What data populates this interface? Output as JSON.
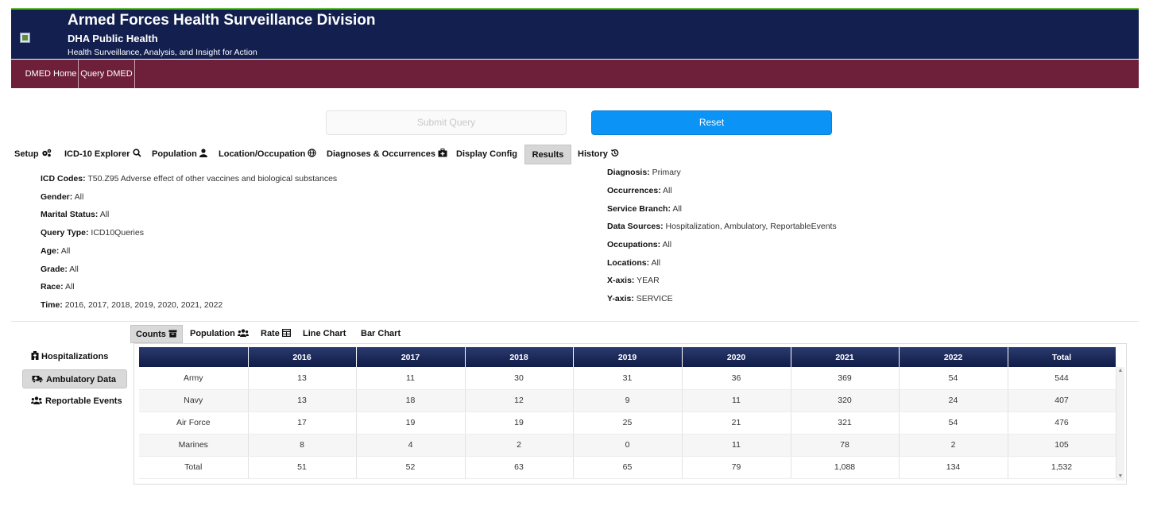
{
  "header": {
    "title": "Armed Forces Health Surveillance Division",
    "subtitle": "DHA Public Health",
    "tagline": "Health Surveillance, Analysis, and Insight for Action"
  },
  "nav": {
    "items": [
      "DMED Home",
      "Query DMED"
    ]
  },
  "actions": {
    "submit_label": "Submit Query",
    "reset_label": "Reset"
  },
  "tabs": [
    {
      "label": "Setup",
      "icon": "gears-icon"
    },
    {
      "label": "ICD-10 Explorer",
      "icon": "search-icon"
    },
    {
      "label": "Population",
      "icon": "user-icon"
    },
    {
      "label": "Location/Occupation",
      "icon": "globe-icon"
    },
    {
      "label": "Diagnoses & Occurrences",
      "icon": "medkit-icon"
    },
    {
      "label": "Display Config",
      "icon": ""
    },
    {
      "label": "Results",
      "icon": "",
      "active": true
    },
    {
      "label": "History",
      "icon": "history-icon"
    }
  ],
  "summary": {
    "left": [
      {
        "label": "ICD Codes:",
        "value": "T50.Z95 Adverse effect of other vaccines and biological substances"
      },
      {
        "label": "Gender:",
        "value": "All"
      },
      {
        "label": "Marital Status:",
        "value": "All"
      },
      {
        "label": "Query Type:",
        "value": "ICD10Queries"
      },
      {
        "label": "Age:",
        "value": "All"
      },
      {
        "label": "Grade:",
        "value": "All"
      },
      {
        "label": "Race:",
        "value": "All"
      },
      {
        "label": "Time:",
        "value": "2016, 2017, 2018, 2019, 2020, 2021, 2022"
      }
    ],
    "right": [
      {
        "label": "Diagnosis:",
        "value": "Primary"
      },
      {
        "label": "Occurrences:",
        "value": "All"
      },
      {
        "label": "Service Branch:",
        "value": "All"
      },
      {
        "label": "Data Sources:",
        "value": "Hospitalization, Ambulatory, ReportableEvents"
      },
      {
        "label": "Occupations:",
        "value": "All"
      },
      {
        "label": "Locations:",
        "value": "All"
      },
      {
        "label": "X-axis:",
        "value": "YEAR"
      },
      {
        "label": "Y-axis:",
        "value": "SERVICE"
      }
    ]
  },
  "result_tabs": [
    {
      "label": "Counts",
      "icon": "archive-icon",
      "active": true
    },
    {
      "label": "Population",
      "icon": "users-icon"
    },
    {
      "label": "Rate",
      "icon": "table-icon"
    },
    {
      "label": "Line Chart",
      "icon": ""
    },
    {
      "label": "Bar Chart",
      "icon": ""
    }
  ],
  "sources": [
    {
      "label": "Hospitalizations",
      "icon": "hospital-icon"
    },
    {
      "label": "Ambulatory Data",
      "icon": "ambulance-icon",
      "active": true
    },
    {
      "label": "Reportable Events",
      "icon": "users-icon"
    }
  ],
  "table": {
    "columns": [
      "",
      "2016",
      "2017",
      "2018",
      "2019",
      "2020",
      "2021",
      "2022",
      "Total"
    ],
    "rows": [
      [
        "Army",
        "13",
        "11",
        "30",
        "31",
        "36",
        "369",
        "54",
        "544"
      ],
      [
        "Navy",
        "13",
        "18",
        "12",
        "9",
        "11",
        "320",
        "24",
        "407"
      ],
      [
        "Air Force",
        "17",
        "19",
        "19",
        "25",
        "21",
        "321",
        "54",
        "476"
      ],
      [
        "Marines",
        "8",
        "4",
        "2",
        "0",
        "11",
        "78",
        "2",
        "105"
      ],
      [
        "Total",
        "51",
        "52",
        "63",
        "65",
        "79",
        "1,088",
        "134",
        "1,532"
      ]
    ]
  }
}
